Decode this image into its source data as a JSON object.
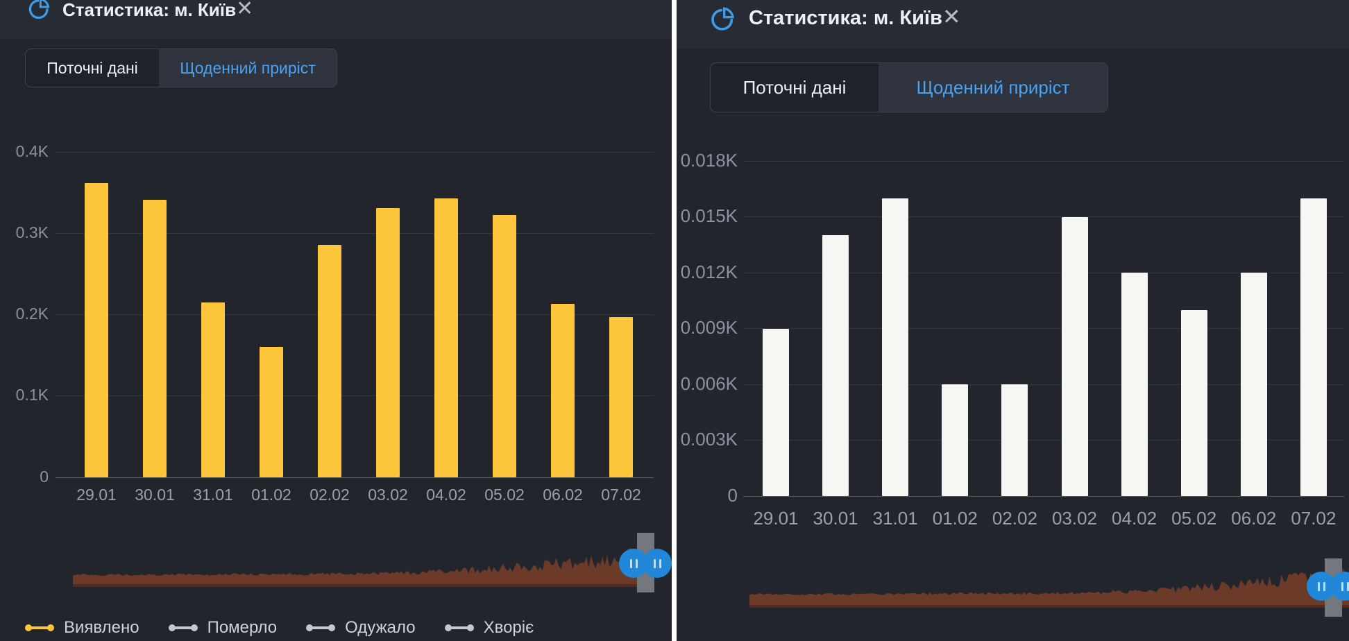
{
  "colors": {
    "panel_bg": "#22252c",
    "header_bg": "#272b33",
    "accent_blue": "#4aa2f2",
    "icon_blue": "#3f9ce8",
    "handle_blue": "#2188d9",
    "track_gray": "#75777e",
    "scrubber_brown": "#6b3a29",
    "scrubber_brown_dark": "#542a1e",
    "yellow_bar": "#fdc63d",
    "white_bar": "#f6f6f3"
  },
  "panels": [
    {
      "header": {
        "title": "Статистика: м. Київ",
        "close_glyph": "✕",
        "icon": "pie-chart-icon"
      },
      "tabs": [
        {
          "label": "Поточні дані",
          "active": false
        },
        {
          "label": "Щоденний приріст",
          "active": true
        }
      ],
      "chart_data": {
        "type": "bar",
        "categories": [
          "29.01",
          "30.01",
          "31.01",
          "01.02",
          "02.02",
          "03.02",
          "04.02",
          "05.02",
          "06.02",
          "07.02"
        ],
        "values": [
          362,
          341,
          215,
          160,
          286,
          331,
          343,
          322,
          213,
          197
        ],
        "series_name": "Виявлено",
        "bar_color": "#fdc63d",
        "ylim": [
          0,
          400
        ],
        "y_tick_values": [
          0,
          100,
          200,
          300,
          400
        ],
        "y_tick_labels": [
          "0",
          "0.1K",
          "0.2K",
          "0.3K",
          "0.4K"
        ],
        "grid": true
      },
      "scrubber": {
        "area_color": "#6b3a29",
        "base_color": "#542a1e",
        "handle_color": "#2188d9",
        "track_color": "#75777e"
      },
      "legend": [
        {
          "label": "Виявлено",
          "color": "#fdc63d"
        },
        {
          "label": "Померло",
          "color": "#c3c9d2"
        },
        {
          "label": "Одужало",
          "color": "#c3c9d2"
        },
        {
          "label": "Хворіє",
          "color": "#c3c9d2"
        }
      ]
    },
    {
      "header": {
        "title": "Статистика: м. Київ",
        "close_glyph": "✕",
        "icon": "pie-chart-icon"
      },
      "tabs": [
        {
          "label": "Поточні дані",
          "active": false
        },
        {
          "label": "Щоденний приріст",
          "active": true
        }
      ],
      "chart_data": {
        "type": "bar",
        "categories": [
          "29.01",
          "30.01",
          "31.01",
          "01.02",
          "02.02",
          "03.02",
          "04.02",
          "05.02",
          "06.02",
          "07.02"
        ],
        "values": [
          9,
          14,
          16,
          6,
          6,
          15,
          12,
          10,
          12,
          16
        ],
        "series_name": "Виявлено",
        "bar_color": "#f6f6f3",
        "ylim": [
          0,
          18
        ],
        "y_tick_values": [
          0,
          3,
          6,
          9,
          12,
          15,
          18
        ],
        "y_tick_labels": [
          "0",
          "0.003K",
          "0.006K",
          "0.009K",
          "0.012K",
          "0.015K",
          "0.018K"
        ],
        "grid": true
      },
      "scrubber": {
        "area_color": "#6b3a29",
        "base_color": "#542a1e",
        "handle_color": "#2188d9",
        "track_color": "#75777e"
      },
      "legend": []
    }
  ]
}
